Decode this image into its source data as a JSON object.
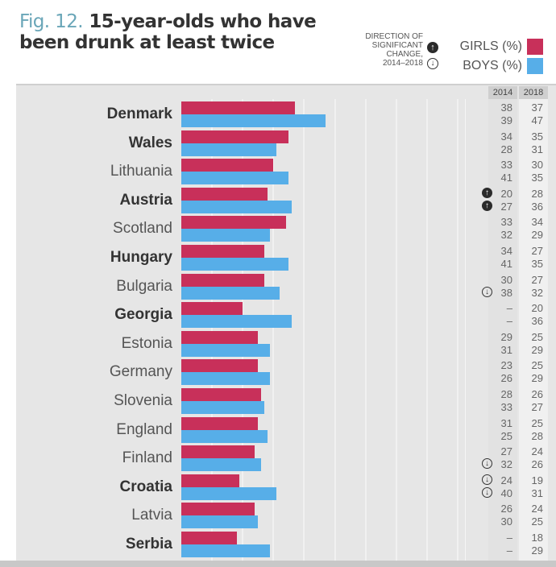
{
  "title": {
    "fig": "Fig. 12.",
    "line1": "15-year-olds who have",
    "line2": "been drunk at least twice"
  },
  "direction_legend": {
    "lines": [
      "DIRECTION OF",
      "SIGNIFICANT",
      "CHANGE,",
      "2014–2018"
    ],
    "up_icon": "↑",
    "down_icon": "↓"
  },
  "legend": {
    "girls": "GIRLS (%)",
    "boys": "BOYS (%)"
  },
  "colors": {
    "girls": "#c8305a",
    "boys": "#57aee8"
  },
  "chart_data": {
    "type": "bar",
    "orientation": "horizontal",
    "title": "Fig. 12. 15-year-olds who have been drunk at least twice",
    "xlabel": "",
    "ylabel": "",
    "xlim": [
      0,
      90
    ],
    "grid": true,
    "legend": "top-right",
    "year_headers": [
      "2014",
      "2018"
    ],
    "categories": [
      "Denmark",
      "Wales",
      "Lithuania",
      "Austria",
      "Scotland",
      "Hungary",
      "Bulgaria",
      "Georgia",
      "Estonia",
      "Germany",
      "Slovenia",
      "England",
      "Finland",
      "Croatia",
      "Latvia",
      "Serbia"
    ],
    "bold": [
      true,
      true,
      false,
      true,
      false,
      true,
      false,
      true,
      false,
      false,
      false,
      false,
      false,
      true,
      false,
      true
    ],
    "series": [
      {
        "name": "Girls (%)",
        "values": [
          37,
          35,
          30,
          28,
          34,
          27,
          27,
          20,
          25,
          25,
          26,
          25,
          24,
          19,
          24,
          18
        ]
      },
      {
        "name": "Boys (%)",
        "values": [
          47,
          31,
          35,
          36,
          29,
          35,
          32,
          36,
          29,
          29,
          27,
          28,
          26,
          31,
          25,
          29
        ]
      }
    ],
    "table_2014": {
      "girls": [
        "38",
        "34",
        "33",
        "20",
        "33",
        "34",
        "30",
        "–",
        "29",
        "23",
        "28",
        "31",
        "27",
        "24",
        "26",
        "–"
      ],
      "boys": [
        "39",
        "28",
        "41",
        "27",
        "32",
        "41",
        "38",
        "–",
        "31",
        "26",
        "33",
        "25",
        "32",
        "40",
        "30",
        "–"
      ]
    },
    "table_2018": {
      "girls": [
        "37",
        "35",
        "30",
        "28",
        "34",
        "27",
        "27",
        "20",
        "25",
        "25",
        "26",
        "25",
        "24",
        "19",
        "24",
        "18"
      ],
      "boys": [
        "47",
        "31",
        "35",
        "36",
        "29",
        "35",
        "32",
        "36",
        "29",
        "29",
        "27",
        "28",
        "26",
        "31",
        "25",
        "29"
      ]
    },
    "significant_change": {
      "girls": [
        "",
        "",
        "",
        "up",
        "",
        "",
        "",
        "",
        "",
        "",
        "",
        "",
        "",
        "down",
        "",
        ""
      ],
      "boys": [
        "",
        "",
        "",
        "up",
        "",
        "",
        "down",
        "",
        "",
        "",
        "",
        "",
        "down",
        "down",
        "",
        ""
      ]
    }
  }
}
